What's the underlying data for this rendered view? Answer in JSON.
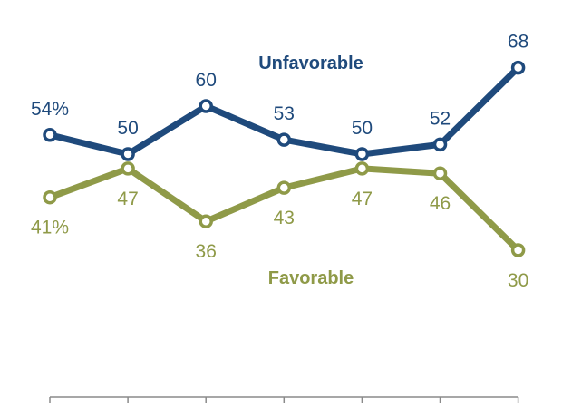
{
  "chart_data": {
    "type": "line",
    "categories": [
      "",
      "",
      "",
      "",
      "",
      "",
      ""
    ],
    "series": [
      {
        "name": "Unfavorable",
        "values": [
          54,
          50,
          60,
          53,
          50,
          52,
          68
        ],
        "labels": [
          "54%",
          "50",
          "60",
          "53",
          "50",
          "52",
          "68"
        ],
        "color": "#1f4a7c"
      },
      {
        "name": "Favorable",
        "values": [
          41,
          47,
          36,
          43,
          47,
          46,
          30
        ],
        "labels": [
          "41%",
          "47",
          "36",
          "43",
          "47",
          "46",
          "30"
        ],
        "color": "#8f9a48"
      }
    ],
    "title": "",
    "xlabel": "",
    "ylabel": "",
    "ylim": [
      20,
      75
    ],
    "grid": false,
    "legend": "inline labels"
  }
}
